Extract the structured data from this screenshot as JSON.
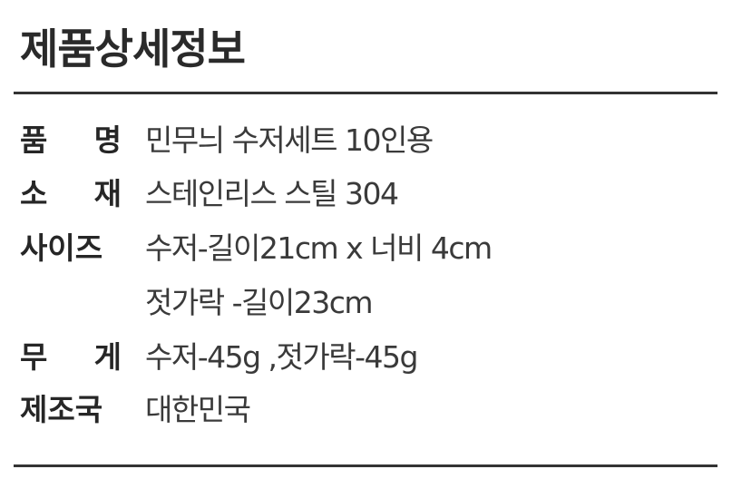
{
  "title": "제품상세정보",
  "specs": [
    {
      "label_chars": [
        "품",
        "명"
      ],
      "value": "민무늬 수저세트 10인용"
    },
    {
      "label_chars": [
        "소",
        "재"
      ],
      "value": "스테인리스 스틸 304"
    },
    {
      "label": "사이즈",
      "value": "수저-길이21cm x 너비 4cm",
      "value_line2": "젓가락 -길이23cm"
    },
    {
      "label_chars": [
        "무",
        "게"
      ],
      "value": "수저-45g ,젓가락-45g"
    },
    {
      "label": "제조국",
      "value": "대한민국"
    }
  ]
}
